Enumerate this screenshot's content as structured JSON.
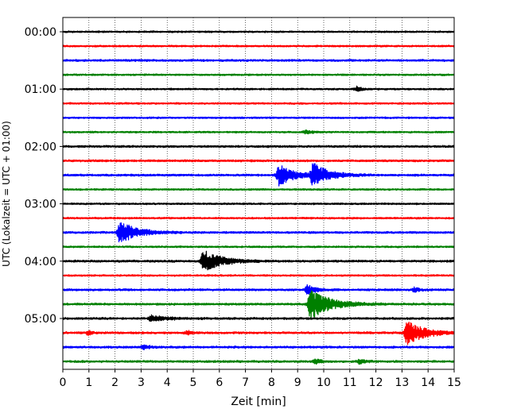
{
  "chart_data": {
    "type": "line",
    "title": "",
    "xlabel": "Zeit  [min]",
    "ylabel": "UTC (Lokalzeit = UTC + 01:00)",
    "xlim": [
      0,
      15
    ],
    "x_ticks": [
      "0",
      "1",
      "2",
      "3",
      "4",
      "5",
      "6",
      "7",
      "8",
      "9",
      "10",
      "11",
      "12",
      "13",
      "14",
      "15"
    ],
    "y_tick_labels": [
      {
        "label": "00:00",
        "trace_index": 0
      },
      {
        "label": "01:00",
        "trace_index": 4
      },
      {
        "label": "02:00",
        "trace_index": 8
      },
      {
        "label": "03:00",
        "trace_index": 12
      },
      {
        "label": "04:00",
        "trace_index": 16
      },
      {
        "label": "05:00",
        "trace_index": 20
      }
    ],
    "grid": {
      "vertical": true,
      "style": "dotted"
    },
    "trace_minutes": 15,
    "color_cycle": [
      "#000000",
      "#ff0000",
      "#0000ff",
      "#008000"
    ],
    "series": [
      {
        "start_time": "00:00",
        "color": "#000000",
        "noise": 0.5,
        "events": []
      },
      {
        "start_time": "00:15",
        "color": "#ff0000",
        "noise": 0.5,
        "events": []
      },
      {
        "start_time": "00:30",
        "color": "#0000ff",
        "noise": 0.6,
        "events": []
      },
      {
        "start_time": "00:45",
        "color": "#008000",
        "noise": 0.5,
        "events": []
      },
      {
        "start_time": "01:00",
        "color": "#000000",
        "noise": 0.5,
        "events": [
          {
            "t": 11.3,
            "amp": 1.5,
            "dur": 0.3
          }
        ]
      },
      {
        "start_time": "01:15",
        "color": "#ff0000",
        "noise": 0.5,
        "events": []
      },
      {
        "start_time": "01:30",
        "color": "#0000ff",
        "noise": 0.5,
        "events": []
      },
      {
        "start_time": "01:45",
        "color": "#008000",
        "noise": 0.5,
        "events": [
          {
            "t": 9.3,
            "amp": 1.0,
            "dur": 0.4
          }
        ]
      },
      {
        "start_time": "02:00",
        "color": "#000000",
        "noise": 0.6,
        "events": []
      },
      {
        "start_time": "02:15",
        "color": "#ff0000",
        "noise": 0.6,
        "events": []
      },
      {
        "start_time": "02:30",
        "color": "#0000ff",
        "noise": 0.6,
        "events": [
          {
            "t": 8.3,
            "amp": 5.5,
            "dur": 1.2
          },
          {
            "t": 9.6,
            "amp": 6.0,
            "dur": 1.3
          }
        ]
      },
      {
        "start_time": "02:45",
        "color": "#008000",
        "noise": 0.5,
        "events": []
      },
      {
        "start_time": "03:00",
        "color": "#000000",
        "noise": 0.5,
        "events": []
      },
      {
        "start_time": "03:15",
        "color": "#ff0000",
        "noise": 0.5,
        "events": []
      },
      {
        "start_time": "03:30",
        "color": "#0000ff",
        "noise": 0.6,
        "events": [
          {
            "t": 2.2,
            "amp": 6.0,
            "dur": 1.3
          }
        ]
      },
      {
        "start_time": "03:45",
        "color": "#008000",
        "noise": 0.5,
        "events": []
      },
      {
        "start_time": "04:00",
        "color": "#000000",
        "noise": 0.6,
        "events": [
          {
            "t": 5.4,
            "amp": 5.5,
            "dur": 1.5
          }
        ]
      },
      {
        "start_time": "04:15",
        "color": "#ff0000",
        "noise": 0.5,
        "events": []
      },
      {
        "start_time": "04:30",
        "color": "#0000ff",
        "noise": 0.6,
        "events": [
          {
            "t": 9.4,
            "amp": 2.5,
            "dur": 0.6
          },
          {
            "t": 13.5,
            "amp": 1.2,
            "dur": 0.3
          }
        ]
      },
      {
        "start_time": "04:45",
        "color": "#008000",
        "noise": 0.6,
        "events": [
          {
            "t": 9.5,
            "amp": 8.0,
            "dur": 1.6
          }
        ]
      },
      {
        "start_time": "05:00",
        "color": "#000000",
        "noise": 0.6,
        "events": [
          {
            "t": 3.4,
            "amp": 1.5,
            "dur": 1.2
          }
        ]
      },
      {
        "start_time": "05:15",
        "color": "#ff0000",
        "noise": 0.6,
        "events": [
          {
            "t": 1.0,
            "amp": 1.2,
            "dur": 0.3
          },
          {
            "t": 4.8,
            "amp": 1.0,
            "dur": 0.3
          },
          {
            "t": 13.2,
            "amp": 6.5,
            "dur": 1.4
          }
        ]
      },
      {
        "start_time": "05:30",
        "color": "#0000ff",
        "noise": 0.6,
        "events": [
          {
            "t": 3.1,
            "amp": 1.5,
            "dur": 0.4
          }
        ]
      },
      {
        "start_time": "05:45",
        "color": "#008000",
        "noise": 0.6,
        "events": [
          {
            "t": 9.7,
            "amp": 1.2,
            "dur": 0.4
          },
          {
            "t": 11.4,
            "amp": 1.2,
            "dur": 0.4
          }
        ]
      }
    ]
  }
}
